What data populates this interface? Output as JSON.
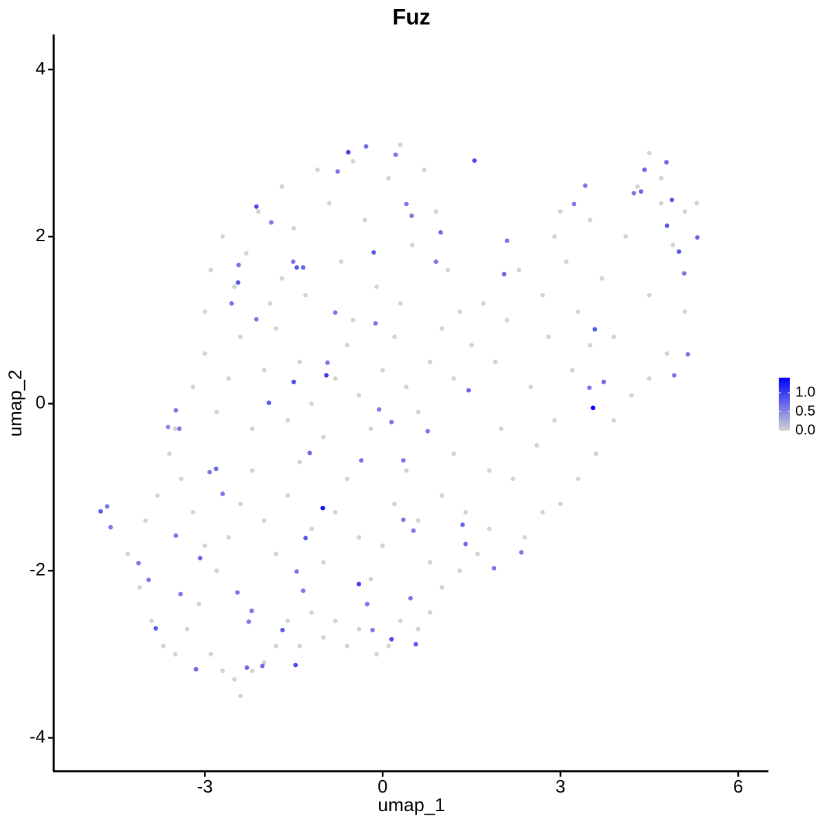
{
  "chart_data": {
    "type": "scatter",
    "title": "Fuz",
    "x_label": "umap_1",
    "y_label": "umap_2",
    "x": [
      -4.3,
      -4.1,
      -3.9,
      -3.7,
      -3.5,
      -3.3,
      -3.1,
      -2.9,
      -2.7,
      -2.5,
      -2.4,
      -2.2,
      -2.0,
      -1.8,
      -1.6,
      -1.4,
      -1.2,
      -1.0,
      -0.8,
      -0.6,
      -0.4,
      -0.1,
      0.1,
      0.3,
      0.6,
      0.8,
      1.0,
      1.3,
      1.6,
      1.8,
      -4.0,
      -3.8,
      -3.6,
      -3.4,
      -3.2,
      -3.0,
      -2.8,
      -2.6,
      -2.4,
      -2.2,
      -2.0,
      -1.8,
      -1.6,
      -1.4,
      -1.2,
      -1.0,
      -0.8,
      -0.6,
      -0.4,
      -0.2,
      0.0,
      0.2,
      0.4,
      0.6,
      0.8,
      1.0,
      1.2,
      1.4,
      -3.5,
      -3.2,
      -3.0,
      -2.8,
      -2.6,
      -2.4,
      -2.2,
      -2.0,
      -1.8,
      -1.6,
      -1.4,
      -1.2,
      -1.0,
      -0.8,
      -0.6,
      -0.4,
      -0.2,
      0.0,
      0.2,
      0.4,
      0.6,
      0.8,
      1.0,
      1.2,
      -3.0,
      -2.9,
      -2.7,
      -2.5,
      -2.3,
      -2.1,
      -1.9,
      -1.7,
      -1.5,
      -1.3,
      -1.1,
      -0.9,
      -0.7,
      -0.5,
      -0.3,
      -0.1,
      0.1,
      0.3,
      0.5,
      0.7,
      0.9,
      1.1,
      1.3,
      0.3,
      -0.5,
      -1.7,
      1.5,
      1.7,
      1.9,
      2.1,
      2.3,
      2.5,
      2.7,
      2.9,
      3.1,
      3.3,
      3.5,
      3.7,
      3.9,
      4.1,
      4.3,
      4.5,
      4.7,
      4.9,
      5.1,
      5.3,
      5.1,
      4.8,
      4.5,
      4.2,
      3.9,
      3.6,
      3.3,
      3.0,
      2.7,
      2.4,
      2.2,
      2.6,
      2.9,
      3.2,
      3.5,
      2.0,
      1.8,
      4.5,
      4.7,
      3.0,
      2.8,
      -4.76,
      -4.65,
      -4.59,
      -1.01,
      3.55,
      1.55,
      -0.58,
      -2.13,
      -1.45,
      -2.44,
      -0.95,
      -1.5,
      -1.92,
      -0.4,
      -1.47,
      0.15,
      0.56,
      -1.69,
      -3.83,
      -3.15,
      -2.29,
      -2.03,
      -1.3,
      -3.08,
      -2.81,
      -2.92,
      -2.7,
      -3.62,
      -3.43,
      -3.49,
      -3.49,
      -4.12,
      -3.95,
      -3.41,
      4.79,
      4.88,
      4.42,
      4.36,
      4.24,
      4.8,
      5.0,
      5.31,
      5.09,
      5.15,
      4.92,
      3.58,
      3.73,
      3.49,
      3.23,
      3.42,
      2.1,
      2.05,
      0.98,
      0.9,
      0.49,
      0.4,
      -0.15,
      0.22,
      -0.28,
      -0.76,
      -1.34,
      -1.51,
      -1.88,
      -2.43,
      -2.55,
      -2.13,
      -0.8,
      -0.12,
      -0.93,
      -0.06,
      0.15,
      0.76,
      1.45,
      -1.23,
      -0.36,
      0.35,
      0.35,
      1.35,
      1.4,
      0.52,
      1.88,
      2.34,
      -0.26,
      -0.17,
      0.47,
      -1.45,
      -1.34,
      -2.45,
      -2.21,
      -2.26
    ],
    "y": [
      -1.8,
      -2.2,
      -2.6,
      -2.9,
      -3.0,
      -2.7,
      -2.4,
      -3.0,
      -3.2,
      -3.3,
      -3.5,
      -3.2,
      -3.1,
      -2.9,
      -2.6,
      -2.9,
      -2.5,
      -2.8,
      -2.6,
      -2.9,
      -2.7,
      -3.0,
      -2.9,
      -2.6,
      -2.7,
      -2.5,
      -2.2,
      -2.0,
      -1.8,
      -1.5,
      -1.4,
      -1.1,
      -0.6,
      -0.9,
      -1.3,
      -1.7,
      -2.0,
      -1.6,
      -1.2,
      -0.8,
      -1.4,
      -1.8,
      -1.1,
      -0.7,
      -1.5,
      -1.9,
      -1.3,
      -0.9,
      -1.6,
      -2.1,
      -1.7,
      -1.2,
      -0.8,
      -1.4,
      -1.9,
      -1.1,
      -0.6,
      -1.3,
      -0.3,
      0.2,
      0.6,
      -0.1,
      0.3,
      0.8,
      -0.3,
      0.4,
      0.9,
      -0.2,
      0.5,
      0.0,
      -0.4,
      0.3,
      0.7,
      0.1,
      -0.3,
      0.4,
      0.8,
      0.2,
      -0.1,
      0.5,
      0.9,
      0.3,
      1.1,
      1.6,
      2.0,
      1.4,
      1.8,
      2.3,
      1.2,
      2.6,
      2.1,
      1.3,
      2.8,
      2.4,
      1.7,
      2.9,
      2.2,
      1.4,
      2.7,
      3.1,
      1.9,
      2.8,
      2.3,
      1.6,
      1.1,
      1.2,
      1.0,
      1.5,
      0.7,
      1.2,
      0.5,
      1.0,
      1.6,
      0.2,
      1.3,
      2.0,
      1.7,
      1.1,
      2.2,
      1.5,
      0.8,
      2.0,
      2.6,
      1.3,
      2.7,
      1.9,
      2.3,
      2.4,
      1.1,
      0.6,
      0.3,
      0.1,
      -0.2,
      -0.6,
      -0.9,
      -1.2,
      -1.3,
      -1.6,
      -0.9,
      -0.5,
      -0.2,
      0.4,
      0.7,
      -0.3,
      -0.8,
      3.0,
      2.4,
      2.3,
      0.8,
      -1.29,
      -1.23,
      -1.48,
      -1.25,
      -0.05,
      2.91,
      3.01,
      2.36,
      1.63,
      1.45,
      0.34,
      0.26,
      0.01,
      -2.16,
      -3.13,
      -2.82,
      -2.88,
      -2.71,
      -2.69,
      -3.18,
      -3.16,
      -3.14,
      -1.61,
      -1.85,
      -0.78,
      -0.82,
      -1.08,
      -0.28,
      -0.3,
      -0.08,
      -1.58,
      -1.91,
      -2.11,
      -2.28,
      2.89,
      2.44,
      2.8,
      2.54,
      2.52,
      2.13,
      1.82,
      1.99,
      1.56,
      0.59,
      0.34,
      0.89,
      0.26,
      0.19,
      2.39,
      2.61,
      1.95,
      1.55,
      2.05,
      1.7,
      2.25,
      2.39,
      1.81,
      2.98,
      3.08,
      2.78,
      1.63,
      1.7,
      2.17,
      1.66,
      1.2,
      1.01,
      1.09,
      0.96,
      0.49,
      -0.07,
      -0.22,
      -0.33,
      0.16,
      -0.59,
      -0.68,
      -0.68,
      -1.39,
      -1.45,
      -1.68,
      -1.52,
      -1.97,
      -1.78,
      -2.4,
      -2.71,
      -2.33,
      -2.01,
      -2.24,
      -2.26,
      -2.48,
      -2.61
    ],
    "values": [
      0,
      0,
      0,
      0,
      0,
      0,
      0,
      0,
      0,
      0,
      0,
      0,
      0,
      0,
      0,
      0,
      0,
      0,
      0,
      0,
      0,
      0,
      0,
      0,
      0,
      0,
      0,
      0,
      0,
      0,
      0,
      0,
      0,
      0,
      0,
      0,
      0,
      0,
      0,
      0,
      0,
      0,
      0,
      0,
      0,
      0,
      0,
      0,
      0,
      0,
      0,
      0,
      0,
      0,
      0,
      0,
      0,
      0,
      0,
      0,
      0,
      0,
      0,
      0,
      0,
      0,
      0,
      0,
      0,
      0,
      0,
      0,
      0,
      0,
      0,
      0,
      0,
      0,
      0,
      0,
      0,
      0,
      0,
      0,
      0,
      0,
      0,
      0,
      0,
      0,
      0,
      0,
      0,
      0,
      0,
      0,
      0,
      0,
      0,
      0,
      0,
      0,
      0,
      0,
      0,
      0,
      0,
      0,
      0,
      0,
      0,
      0,
      0,
      0,
      0,
      0,
      0,
      0,
      0,
      0,
      0,
      0,
      0,
      0,
      0,
      0,
      0,
      0,
      0,
      0,
      0,
      0,
      0,
      0,
      0,
      0,
      0,
      0,
      0,
      0,
      0,
      0,
      0,
      0,
      0,
      0,
      0,
      0,
      0,
      0.8,
      0.6,
      0.6,
      1.3,
      1.4,
      0.9,
      1.0,
      0.9,
      0.8,
      0.8,
      1.0,
      0.9,
      0.8,
      1.0,
      0.9,
      0.9,
      0.8,
      0.8,
      0.8,
      0.7,
      0.7,
      0.7,
      0.8,
      0.7,
      0.7,
      0.6,
      0.6,
      0.5,
      0.6,
      0.6,
      0.6,
      0.6,
      0.6,
      0.6,
      0.7,
      0.8,
      0.7,
      0.7,
      0.6,
      0.8,
      0.8,
      0.7,
      0.6,
      0.6,
      0.6,
      0.8,
      0.7,
      0.6,
      0.6,
      0.6,
      0.6,
      0.7,
      0.7,
      0.6,
      0.6,
      0.6,
      0.8,
      0.6,
      0.7,
      0.6,
      0.7,
      0.6,
      0.6,
      0.6,
      0.6,
      0.6,
      0.6,
      0.6,
      0.6,
      0.6,
      0.6,
      0.6,
      0.7,
      0.7,
      0.6,
      0.6,
      0.6,
      0.7,
      0.7,
      0.6,
      0.6,
      0.6,
      0.6,
      0.6,
      0.6,
      0.6,
      0.6,
      0.6,
      0.6,
      0.6
    ],
    "xlim": [
      -5.55,
      6.51
    ],
    "xticks": [
      -3,
      0,
      3,
      6
    ],
    "ylim": [
      -4.4,
      4.42
    ],
    "yticks": [
      -4,
      -2,
      0,
      2,
      4
    ],
    "color_low": "#d3d3d3",
    "color_high": "#0000ff",
    "color_lim": [
      0,
      1.4
    ],
    "color_ticks": [
      {
        "value": 0,
        "label": "0.0"
      },
      0.5,
      {
        "value": 1,
        "label": "1.0"
      }
    ]
  }
}
